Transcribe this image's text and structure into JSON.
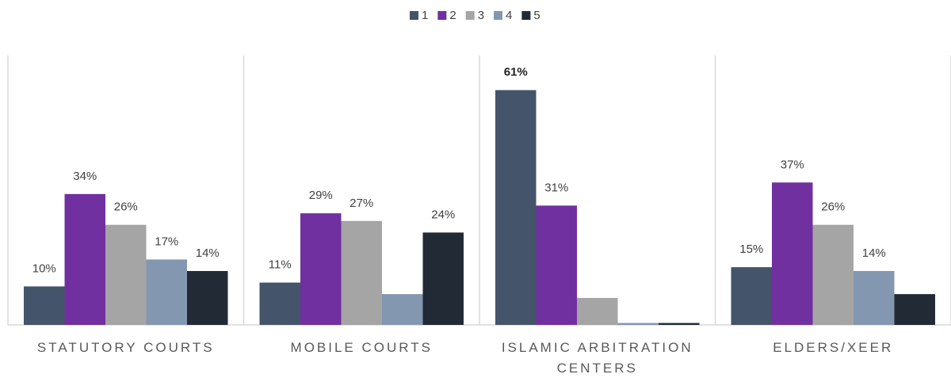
{
  "chart_data": {
    "type": "bar",
    "categories": [
      "STATUTORY COURTS",
      "MOBILE COURTS",
      "ISLAMIC ARBITRATION CENTERS",
      "ELDERS/XEER"
    ],
    "series": [
      {
        "name": "1",
        "color": "#44546a",
        "values": [
          10,
          11,
          61,
          15
        ],
        "value_labels": [
          "10%",
          "11%",
          "61%",
          "15%"
        ]
      },
      {
        "name": "2",
        "color": "#7030a0",
        "values": [
          34,
          29,
          31,
          37
        ],
        "value_labels": [
          "34%",
          "29%",
          "31%",
          "37%"
        ]
      },
      {
        "name": "3",
        "color": "#a5a5a5",
        "values": [
          26,
          27,
          7,
          26
        ],
        "value_labels": [
          "26%",
          "27%",
          null,
          "26%"
        ]
      },
      {
        "name": "4",
        "color": "#8497b0",
        "values": [
          17,
          8,
          0.5,
          14
        ],
        "value_labels": [
          "17%",
          null,
          null,
          "14%"
        ]
      },
      {
        "name": "5",
        "color": "#222a35",
        "values": [
          14,
          24,
          0.5,
          8
        ],
        "value_labels": [
          "14%",
          "24%",
          null,
          null
        ]
      }
    ],
    "ylim": [
      0,
      70
    ],
    "legend": "top"
  }
}
